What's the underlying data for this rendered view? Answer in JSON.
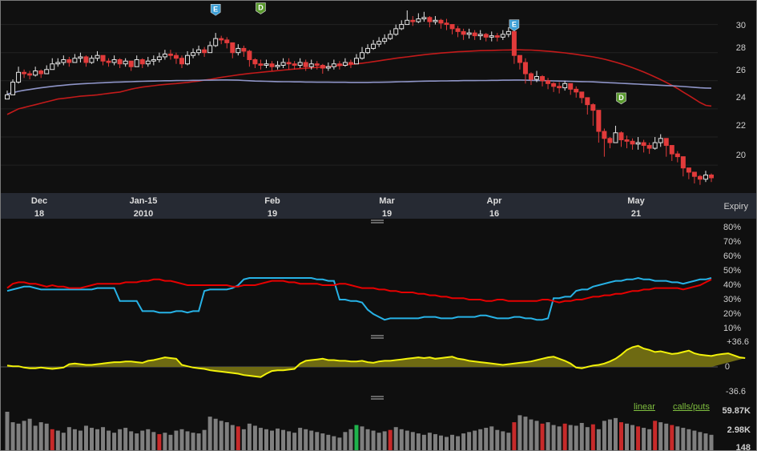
{
  "colors": {
    "background": "#151515",
    "price_panel": "#101010",
    "date_band": "#262a33",
    "up_candle": "#e6e6e6",
    "down_candle": "#e23b3b",
    "ma_red": "#c21a1a",
    "ma_blue": "#8f95c8",
    "iv30": "#e60000",
    "hv20": "#27b2e6",
    "spread": "#f2f20a",
    "spread_fill": "#6e6a12",
    "vol_bar": "#7f7f7f",
    "vol_bar_red": "#c72a2a",
    "vol_bar_green": "#1fb34c",
    "event_earnings": "#3d9fd6",
    "event_dividend": "#5a9a2e"
  },
  "price_axis": {
    "labels": [
      "30",
      "28",
      "26",
      "24",
      "22",
      "20"
    ]
  },
  "date_axis": {
    "months": [
      "Dec",
      "Jan-15",
      "Feb",
      "Mar",
      "Apr",
      "May"
    ],
    "days": [
      "18",
      "2010",
      "19",
      "19",
      "16",
      "21"
    ],
    "expiry_label": "Expiry"
  },
  "vol_axis": {
    "labels": [
      "80%",
      "70%",
      "60%",
      "50%",
      "40%",
      "30%",
      "20%",
      "10%"
    ]
  },
  "spread_axis": {
    "labels": [
      "+36.6",
      "0",
      "-36.6"
    ]
  },
  "volume_axis": {
    "labels": [
      "59.87K",
      "2.98K",
      "148"
    ]
  },
  "links": {
    "linear": "linear",
    "calls_puts": "calls/puts"
  },
  "events": [
    {
      "label": "E",
      "kind": "earnings",
      "date_index": 37,
      "price": 30.3
    },
    {
      "label": "D",
      "kind": "dividend",
      "date_index": 45,
      "price": 30.4
    },
    {
      "label": "E",
      "kind": "earnings",
      "date_index": 90,
      "price": 29.2
    },
    {
      "label": "D",
      "kind": "dividend",
      "date_index": 109,
      "price": 24.0
    }
  ],
  "chart_data": [
    {
      "type": "candlestick",
      "title": "",
      "ylim": [
        18.3,
        31.4
      ],
      "x_range": [
        0,
        126
      ],
      "closes": [
        25.0,
        25.9,
        26.6,
        26.5,
        26.4,
        26.7,
        26.5,
        26.8,
        27.2,
        27.3,
        27.5,
        27.3,
        27.6,
        27.7,
        27.3,
        27.6,
        27.8,
        27.4,
        27.3,
        27.5,
        27.2,
        27.4,
        27.0,
        27.5,
        27.2,
        27.4,
        27.5,
        27.7,
        27.9,
        27.8,
        27.6,
        27.2,
        27.8,
        28.0,
        28.2,
        28.0,
        28.5,
        29.0,
        28.9,
        28.7,
        28.0,
        28.3,
        28.1,
        27.5,
        27.2,
        27.1,
        27.2,
        27.0,
        27.1,
        27.3,
        27.2,
        27.1,
        27.3,
        27.0,
        27.2,
        27.1,
        26.9,
        27.0,
        27.2,
        27.1,
        27.3,
        27.2,
        27.6,
        28.0,
        28.3,
        28.6,
        28.8,
        29.0,
        29.3,
        29.7,
        30.0,
        30.3,
        30.2,
        30.4,
        30.5,
        30.2,
        30.3,
        30.1,
        30.0,
        29.7,
        29.5,
        29.3,
        29.4,
        29.2,
        29.3,
        29.1,
        29.2,
        29.1,
        29.3,
        29.5,
        27.8,
        27.3,
        26.5,
        26.1,
        26.3,
        26.0,
        25.8,
        25.6,
        25.5,
        25.8,
        25.4,
        25.2,
        24.8,
        24.3,
        23.9,
        22.4,
        21.9,
        21.6,
        22.3,
        21.8,
        21.7,
        21.5,
        21.6,
        21.4,
        21.2,
        21.6,
        21.9,
        21.4,
        20.8,
        20.6,
        19.8,
        19.5,
        19.2,
        19.0,
        19.3,
        19.1
      ],
      "highs": [
        25.3,
        26.1,
        27.0,
        26.8,
        26.7,
        27.0,
        26.8,
        27.1,
        27.6,
        27.6,
        27.8,
        27.7,
        27.9,
        28.0,
        27.8,
        27.8,
        28.1,
        27.8,
        27.6,
        27.8,
        27.6,
        27.6,
        27.4,
        27.8,
        27.6,
        27.7,
        27.8,
        28.0,
        28.2,
        28.2,
        28.0,
        27.8,
        28.1,
        28.3,
        28.5,
        28.4,
        28.8,
        29.4,
        29.2,
        29.1,
        28.7,
        28.6,
        28.5,
        28.2,
        27.6,
        27.5,
        27.5,
        27.4,
        27.4,
        27.6,
        27.6,
        27.4,
        27.6,
        27.5,
        27.5,
        27.4,
        27.2,
        27.3,
        27.5,
        27.4,
        27.6,
        27.5,
        27.9,
        28.4,
        28.6,
        28.9,
        29.1,
        29.3,
        29.6,
        30.0,
        30.3,
        31.0,
        30.6,
        30.8,
        30.9,
        30.6,
        30.6,
        30.4,
        30.4,
        30.0,
        29.9,
        29.7,
        29.7,
        29.6,
        29.6,
        29.4,
        29.5,
        29.4,
        29.6,
        29.8,
        29.6,
        27.8,
        27.6,
        26.6,
        26.7,
        26.4,
        26.2,
        25.9,
        25.9,
        26.0,
        25.8,
        25.6,
        25.2,
        24.7,
        24.4,
        23.8,
        22.6,
        22.0,
        22.8,
        22.4,
        22.1,
        21.9,
        22.0,
        21.8,
        21.6,
        22.0,
        22.2,
        21.8,
        21.2,
        21.0,
        20.2,
        19.8,
        19.5,
        19.3,
        19.6,
        19.4
      ],
      "lows": [
        24.8,
        25.5,
        25.8,
        26.2,
        26.1,
        26.3,
        26.2,
        26.5,
        26.8,
        27.0,
        27.1,
        27.0,
        27.3,
        27.3,
        27.0,
        27.2,
        27.4,
        27.1,
        27.0,
        27.1,
        26.9,
        27.0,
        26.7,
        27.0,
        26.9,
        27.0,
        27.1,
        27.3,
        27.5,
        27.5,
        27.2,
        26.9,
        27.1,
        27.6,
        27.8,
        27.7,
        28.0,
        28.4,
        28.6,
        28.3,
        27.6,
        27.8,
        27.7,
        27.0,
        26.9,
        26.8,
        26.9,
        26.7,
        26.8,
        26.9,
        26.8,
        26.8,
        26.9,
        26.7,
        26.8,
        26.8,
        26.5,
        26.7,
        26.8,
        26.8,
        27.0,
        26.9,
        27.2,
        27.5,
        27.9,
        28.2,
        28.4,
        28.6,
        28.9,
        29.2,
        29.6,
        30.0,
        29.9,
        30.1,
        30.2,
        29.8,
        30.0,
        29.7,
        29.6,
        29.3,
        29.1,
        28.9,
        29.0,
        28.9,
        28.9,
        28.8,
        28.8,
        28.8,
        28.9,
        29.1,
        27.2,
        26.8,
        25.8,
        25.7,
        25.9,
        25.6,
        25.4,
        25.2,
        25.1,
        25.3,
        25.0,
        24.8,
        24.4,
        23.6,
        22.8,
        21.6,
        20.6,
        21.2,
        21.6,
        21.3,
        21.2,
        21.1,
        21.1,
        20.9,
        20.8,
        21.1,
        21.3,
        20.6,
        20.3,
        20.2,
        19.2,
        19.0,
        18.7,
        18.6,
        18.8,
        18.8
      ],
      "ma_long": [
        23.6,
        23.8,
        24.0,
        24.1,
        24.2,
        24.3,
        24.4,
        24.5,
        24.6,
        24.7,
        24.75,
        24.8,
        24.85,
        24.9,
        24.93,
        24.96,
        25.0,
        25.05,
        25.1,
        25.15,
        25.2,
        25.3,
        25.4,
        25.48,
        25.55,
        25.6,
        25.65,
        25.7,
        25.74,
        25.77,
        25.8,
        25.84,
        25.88,
        25.93,
        25.98,
        26.04,
        26.1,
        26.17,
        26.24,
        26.3,
        26.36,
        26.42,
        26.47,
        26.52,
        26.56,
        26.6,
        26.64,
        26.68,
        26.72,
        26.76,
        26.8,
        26.83,
        26.86,
        26.89,
        26.92,
        26.95,
        26.98,
        27.0,
        27.04,
        27.08,
        27.12,
        27.16,
        27.2,
        27.25,
        27.3,
        27.36,
        27.42,
        27.48,
        27.54,
        27.6,
        27.65,
        27.7,
        27.75,
        27.8,
        27.85,
        27.89,
        27.93,
        27.97,
        28.0,
        28.03,
        28.06,
        28.08,
        28.1,
        28.12,
        28.14,
        28.15,
        28.16,
        28.17,
        28.18,
        28.19,
        28.2,
        28.2,
        28.19,
        28.18,
        28.16,
        28.13,
        28.1,
        28.06,
        28.02,
        27.98,
        27.93,
        27.88,
        27.82,
        27.76,
        27.7,
        27.62,
        27.53,
        27.43,
        27.32,
        27.2,
        27.07,
        26.93,
        26.78,
        26.62,
        26.45,
        26.27,
        26.08,
        25.88,
        25.67,
        25.45,
        25.2,
        24.95,
        24.7,
        24.45,
        24.25,
        24.2
      ],
      "ma_short": [
        25.05,
        25.15,
        25.25,
        25.32,
        25.38,
        25.44,
        25.5,
        25.55,
        25.6,
        25.64,
        25.68,
        25.72,
        25.75,
        25.78,
        25.8,
        25.82,
        25.84,
        25.86,
        25.88,
        25.9,
        25.91,
        25.92,
        25.93,
        25.95,
        25.96,
        25.97,
        25.98,
        25.99,
        26.0,
        26.0,
        26.01,
        26.02,
        26.02,
        26.03,
        26.03,
        26.04,
        26.04,
        26.05,
        26.06,
        26.06,
        26.05,
        26.04,
        26.02,
        26.0,
        25.98,
        25.97,
        25.96,
        25.95,
        25.94,
        25.93,
        25.93,
        25.92,
        25.92,
        25.91,
        25.91,
        25.9,
        25.9,
        25.9,
        25.89,
        25.89,
        25.89,
        25.88,
        25.88,
        25.88,
        25.88,
        25.89,
        25.89,
        25.9,
        25.91,
        25.92,
        25.93,
        25.94,
        25.95,
        25.96,
        25.97,
        25.98,
        25.98,
        25.99,
        25.99,
        26.0,
        26.0,
        26.01,
        26.01,
        26.01,
        26.02,
        26.02,
        26.03,
        26.03,
        26.04,
        26.04,
        26.05,
        26.05,
        26.04,
        26.03,
        26.02,
        26.01,
        26.0,
        25.99,
        25.98,
        25.97,
        25.96,
        25.95,
        25.94,
        25.93,
        25.92,
        25.9,
        25.88,
        25.86,
        25.84,
        25.82,
        25.8,
        25.78,
        25.76,
        25.74,
        25.72,
        25.7,
        25.68,
        25.66,
        25.64,
        25.62,
        25.59,
        25.56,
        25.53,
        25.5,
        25.48,
        25.47
      ]
    },
    {
      "type": "line",
      "title": "",
      "ylim": [
        10,
        80
      ],
      "series": [
        {
          "values": [
            38,
            41,
            42,
            42,
            41,
            41,
            40,
            39,
            40,
            39,
            39,
            38,
            38,
            38,
            39,
            40,
            41,
            41,
            41,
            41,
            41,
            42,
            42,
            42,
            43,
            43,
            44,
            44,
            43,
            43,
            42,
            41,
            40,
            40,
            40,
            40,
            40,
            40,
            40,
            40,
            39,
            39,
            40,
            40,
            40,
            41,
            42,
            43,
            43,
            43,
            42,
            42,
            41,
            41,
            41,
            41,
            40,
            40,
            40,
            41,
            41,
            40,
            39,
            38,
            38,
            38,
            37,
            37,
            36,
            36,
            35,
            35,
            35,
            34,
            34,
            33,
            33,
            32,
            32,
            31,
            31,
            31,
            30,
            30,
            30,
            29,
            29,
            30,
            30,
            29,
            29,
            29,
            29,
            29,
            29,
            30,
            30,
            29,
            28,
            29,
            29,
            30,
            30,
            31,
            32,
            32,
            33,
            33,
            34,
            34,
            35,
            36,
            36,
            37,
            37,
            38,
            38,
            38,
            38,
            38,
            37,
            38,
            39,
            40,
            42,
            44
          ]
        },
        {
          "values": [
            36,
            37,
            38,
            39,
            39,
            38,
            37,
            37,
            37,
            37,
            37,
            37,
            37,
            37,
            37,
            37,
            38,
            38,
            38,
            38,
            29,
            29,
            29,
            29,
            22,
            22,
            22,
            21,
            21,
            21,
            22,
            22,
            21,
            22,
            22,
            36,
            37,
            37,
            37,
            37,
            38,
            40,
            44,
            45,
            45,
            45,
            45,
            45,
            45,
            45,
            45,
            45,
            45,
            45,
            45,
            44,
            44,
            43,
            43,
            30,
            30,
            29,
            29,
            28,
            23,
            20,
            18,
            16,
            17,
            17,
            17,
            17,
            17,
            17,
            18,
            18,
            18,
            17,
            17,
            17,
            18,
            18,
            18,
            18,
            19,
            19,
            18,
            17,
            17,
            17,
            18,
            18,
            17,
            17,
            16,
            16,
            17,
            31,
            31,
            32,
            32,
            36,
            37,
            37,
            39,
            40,
            41,
            42,
            43,
            43,
            44,
            44,
            45,
            44,
            44,
            43,
            43,
            43,
            42,
            42,
            41,
            42,
            43,
            44,
            44,
            45
          ]
        }
      ]
    },
    {
      "type": "area",
      "title": "",
      "ylim": [
        -36.6,
        36.6
      ],
      "values": [
        2,
        1,
        1,
        -1,
        -2,
        -2,
        -1,
        -2,
        -3,
        -2,
        -1,
        4,
        5,
        4,
        3,
        3,
        4,
        5,
        6,
        7,
        7,
        8,
        8,
        7,
        6,
        9,
        10,
        12,
        14,
        13,
        12,
        3,
        1,
        -1,
        -2,
        -3,
        -5,
        -6,
        -7,
        -8,
        -9,
        -10,
        -12,
        -13,
        -14,
        -15,
        -10,
        -6,
        -5,
        -5,
        -4,
        -3,
        5,
        9,
        10,
        11,
        12,
        10,
        10,
        9,
        9,
        8,
        8,
        9,
        7,
        6,
        8,
        9,
        9,
        10,
        11,
        12,
        13,
        14,
        13,
        14,
        12,
        13,
        14,
        15,
        12,
        11,
        9,
        8,
        7,
        6,
        5,
        4,
        3,
        4,
        5,
        6,
        7,
        8,
        10,
        12,
        14,
        15,
        12,
        9,
        5,
        -1,
        -2,
        0,
        2,
        3,
        5,
        8,
        12,
        18,
        25,
        29,
        31,
        27,
        25,
        22,
        23,
        21,
        19,
        20,
        22,
        24,
        20,
        18,
        17,
        16,
        18,
        19,
        20,
        17,
        14,
        13
      ]
    },
    {
      "type": "bar",
      "title": "",
      "ylim": [
        0,
        59870
      ],
      "values": [
        55,
        40,
        38,
        42,
        45,
        35,
        40,
        38,
        30,
        28,
        25,
        33,
        30,
        28,
        35,
        32,
        30,
        33,
        28,
        25,
        30,
        32,
        27,
        24,
        28,
        30,
        26,
        23,
        25,
        22,
        28,
        30,
        27,
        25,
        24,
        29,
        48,
        45,
        42,
        40,
        36,
        34,
        30,
        38,
        35,
        32,
        30,
        28,
        31,
        29,
        27,
        25,
        32,
        30,
        28,
        26,
        24,
        22,
        20,
        18,
        26,
        30,
        36,
        34,
        30,
        28,
        25,
        27,
        29,
        33,
        30,
        28,
        26,
        24,
        22,
        25,
        23,
        21,
        19,
        22,
        20,
        24,
        26,
        28,
        30,
        32,
        34,
        29,
        27,
        25,
        40,
        50,
        48,
        44,
        42,
        38,
        40,
        36,
        34,
        38,
        36,
        35,
        39,
        33,
        37,
        30,
        42,
        44,
        46,
        40,
        38,
        36,
        34,
        32,
        30,
        42,
        40,
        38,
        36,
        34,
        32,
        30,
        28,
        26,
        24,
        22
      ],
      "highlight_red": [
        8,
        27,
        41,
        68,
        90,
        95,
        99,
        104,
        109,
        112,
        115,
        118
      ],
      "highlight_green": [
        62
      ]
    }
  ]
}
